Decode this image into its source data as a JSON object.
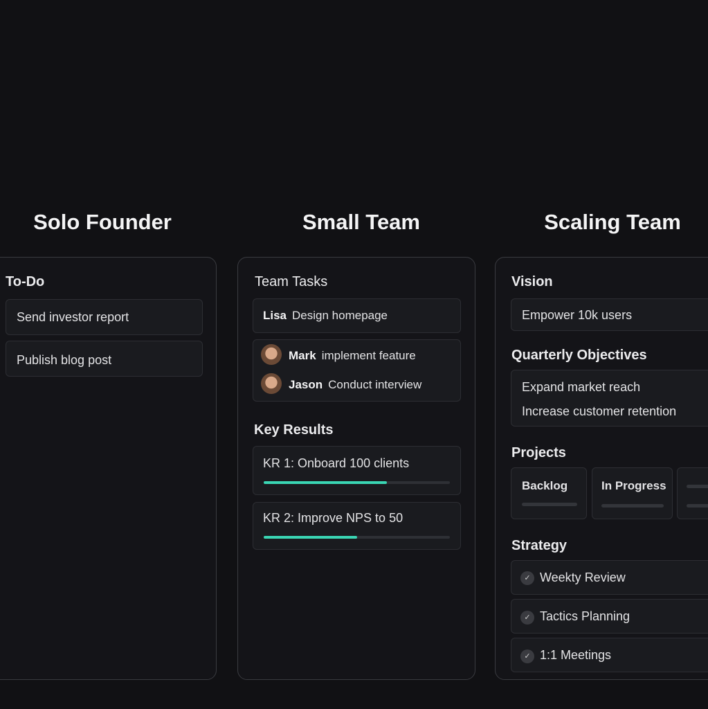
{
  "columns": [
    {
      "title": "Solo Founder",
      "section": "To-Do",
      "items": [
        "Send investor report",
        "Publish blog post"
      ]
    },
    {
      "title": "Small Team",
      "section": "Team Tasks",
      "tasks": [
        {
          "name": "Lisa",
          "task": "Design homepage"
        },
        {
          "name": "Mark",
          "task": "implement feature"
        },
        {
          "name": "Jason",
          "task": "Conduct interview"
        }
      ],
      "kr_title": "Key Results",
      "krs": [
        {
          "label": "KR 1:  Onboard  100 clients",
          "progress": 0.66
        },
        {
          "label": "KR 2:  Improve NPS to 50",
          "progress": 0.5
        }
      ],
      "accent": "#3ad6b4"
    },
    {
      "title": "Scaling Team",
      "vision_title": "Vision",
      "vision": "Empower 10k users",
      "objectives_title": "Quarterly Objectives",
      "objectives": [
        "Expand market reach",
        "Increase customer retention"
      ],
      "projects_title": "Projects",
      "projects": [
        "Backlog",
        "In Progress"
      ],
      "strategy_title": "Strategy",
      "strategy": [
        "Weekty Review",
        "Tactics Planning",
        "1:1 Meetings"
      ]
    }
  ]
}
